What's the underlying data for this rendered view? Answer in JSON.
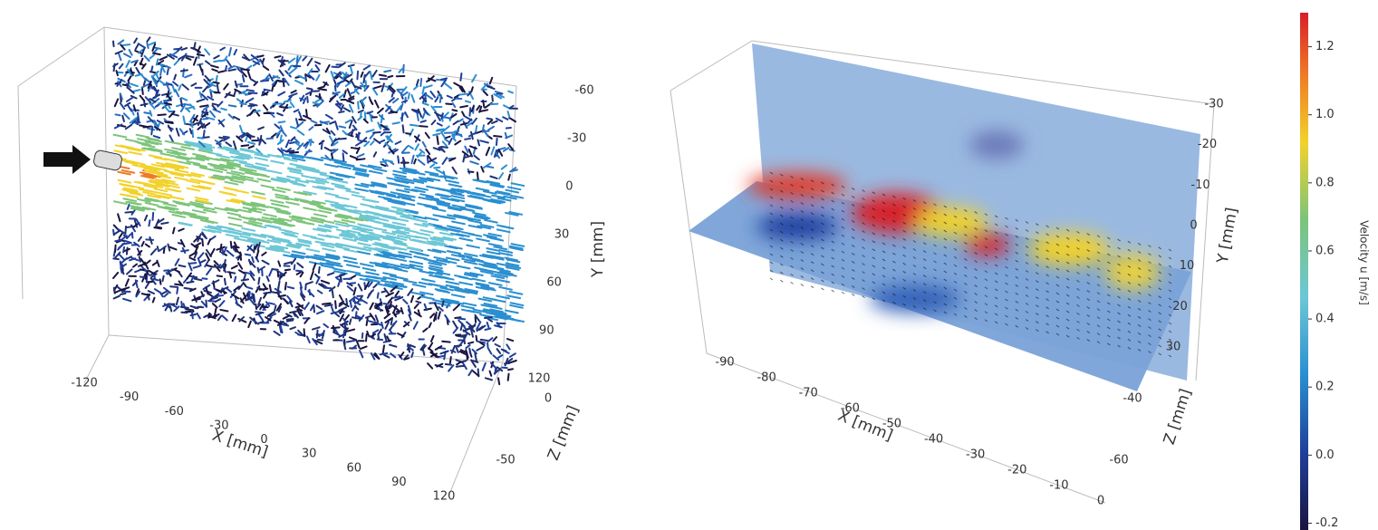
{
  "left_plot": {
    "x_label": "X [mm]",
    "y_label": "Y [mm]",
    "z_label": "Z [mm]",
    "xticks": [
      -120,
      -90,
      -60,
      -30,
      0,
      30,
      60,
      90,
      120
    ],
    "yticks": [
      -60,
      -30,
      0,
      30,
      60,
      90,
      120
    ],
    "zticks": [
      0,
      -50
    ]
  },
  "right_plot": {
    "x_label": "X [mm]",
    "y_label": "Y [mm]",
    "z_label": "Z [mm]",
    "xticks": [
      -90,
      -80,
      -70,
      -60,
      -50,
      -40,
      -30,
      -20,
      -10,
      0
    ],
    "yticks": [
      -30,
      -20,
      -10,
      0,
      10,
      20,
      30
    ],
    "zticks": [
      -40,
      -60
    ]
  },
  "colorbar": {
    "label": "Velocity u [m/s]",
    "clim": [
      -0.22,
      1.3
    ],
    "ticks": [
      -0.2,
      {
        "value": 0,
        "label": "0.0"
      },
      0.2,
      0.4,
      0.6,
      0.8,
      {
        "value": 1,
        "label": "1.0"
      },
      1.2
    ]
  }
}
